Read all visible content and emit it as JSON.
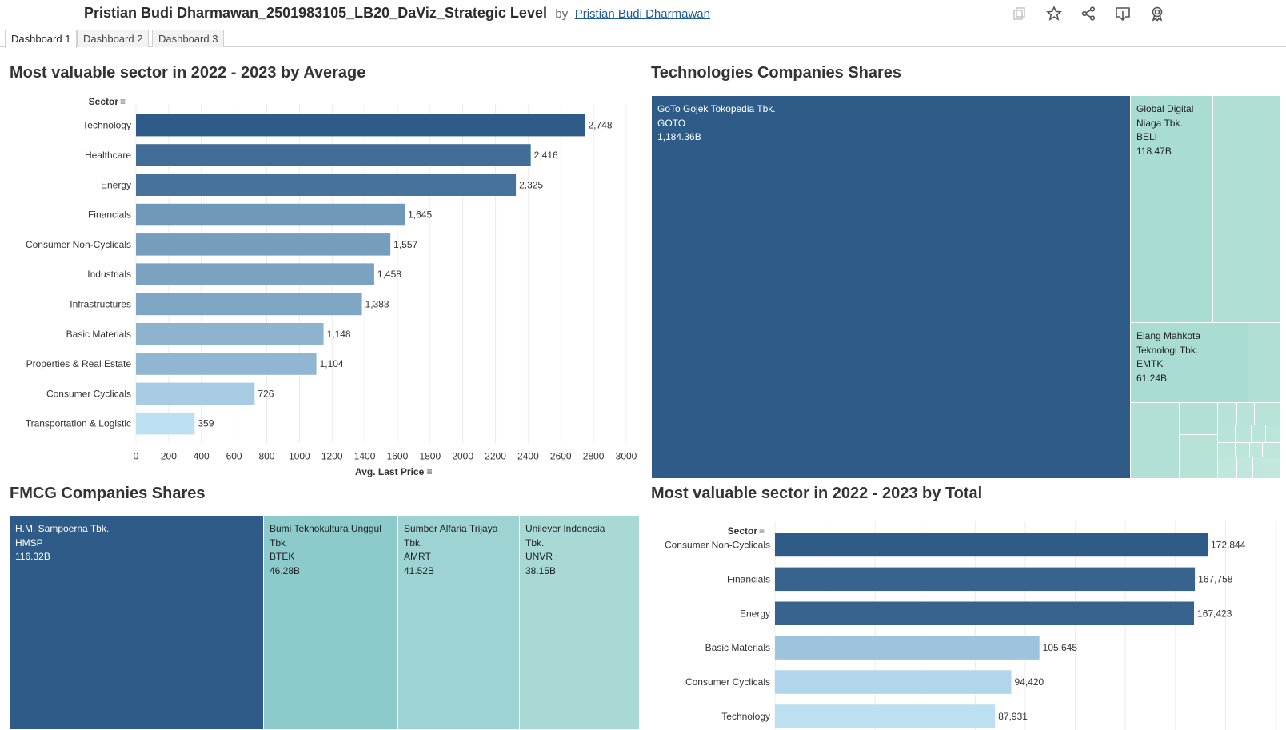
{
  "header": {
    "title": "Pristian Budi Dharmawan_2501983105_LB20_DaViz_Strategic Level",
    "by": "by",
    "author": "Pristian Budi Dharmawan",
    "icons": [
      "copy-icon",
      "star-icon",
      "share-icon",
      "download-icon",
      "badge-icon"
    ]
  },
  "tabs": [
    {
      "label": "Dashboard 1",
      "active": true
    },
    {
      "label": "Dashboard 2",
      "active": false
    },
    {
      "label": "Dashboard 3",
      "active": false
    }
  ],
  "avg_panel": {
    "title": "Most valuable sector in 2022 - 2023 by Average",
    "sort_label": "Sector",
    "x_title": "Avg. Last Price"
  },
  "tech_panel": {
    "title": "Technologies Companies Shares"
  },
  "fmcg_panel": {
    "title": "FMCG Companies Shares"
  },
  "total_panel": {
    "title": "Most valuable sector in 2022 - 2023 by Total",
    "sort_label": "Sector"
  },
  "colors": {
    "dark_blue": "#2e5b87",
    "mid_blue": "#5886b5",
    "light_blue": "#8fbde0",
    "lightest_blue": "#bcdff2",
    "teal_1": "#8dcacc",
    "teal_2": "#9dd3d2",
    "teal_3": "#a8d9d5",
    "mint": "#a9dcd3",
    "mint_light": "#b8e3d8"
  },
  "chart_data": [
    {
      "type": "bar",
      "orientation": "horizontal",
      "title": "Most valuable sector in 2022 - 2023 by Average",
      "ylabel": "Sector",
      "xlabel": "Avg. Last Price",
      "categories": [
        "Technology",
        "Healthcare",
        "Energy",
        "Financials",
        "Consumer Non-Cyclicals",
        "Industrials",
        "Infrastructures",
        "Basic Materials",
        "Properties & Real Estate",
        "Consumer Cyclicals",
        "Transportation & Logistic"
      ],
      "values": [
        2748,
        2416,
        2325,
        1645,
        1557,
        1458,
        1383,
        1148,
        1104,
        726,
        359
      ],
      "value_labels": [
        "2,748",
        "2,416",
        "2,325",
        "1,645",
        "1,557",
        "1,458",
        "1,383",
        "1,148",
        "1,104",
        "726",
        "359"
      ],
      "xlim": [
        0,
        3000
      ],
      "xticks": [
        "0",
        "200",
        "400",
        "600",
        "800",
        "1000",
        "1200",
        "1400",
        "1600",
        "1800",
        "2000",
        "2200",
        "2400",
        "2600",
        "2800",
        "3000"
      ],
      "grid": true,
      "color_scale": "sequential blue by value"
    },
    {
      "type": "treemap",
      "title": "Technologies Companies Shares",
      "items": [
        {
          "name": "GoTo Gojek Tokopedia Tbk.",
          "ticker": "GOTO",
          "value_label": "1,184.36B"
        },
        {
          "name": "Global Digital Niaga Tbk.",
          "ticker": "BELI",
          "value_label": "118.47B"
        },
        {
          "name": "Elang Mahkota Teknologi Tbk.",
          "ticker": "EMTK",
          "value_label": "61.24B"
        }
      ]
    },
    {
      "type": "treemap",
      "title": "FMCG Companies Shares",
      "items": [
        {
          "name": "H.M. Sampoerna Tbk.",
          "ticker": "HMSP",
          "value_label": "116.32B"
        },
        {
          "name": "Bumi Teknokultura Unggul Tbk",
          "ticker": "BTEK",
          "value_label": "46.28B"
        },
        {
          "name": "Sumber Alfaria Trijaya Tbk.",
          "ticker": "AMRT",
          "value_label": "41.52B"
        },
        {
          "name": "Unilever Indonesia Tbk.",
          "ticker": "UNVR",
          "value_label": "38.15B"
        }
      ]
    },
    {
      "type": "bar",
      "orientation": "horizontal",
      "title": "Most valuable sector in 2022 - 2023 by Total",
      "ylabel": "Sector",
      "categories": [
        "Consumer Non-Cyclicals",
        "Financials",
        "Energy",
        "Basic Materials",
        "Consumer Cyclicals",
        "Technology"
      ],
      "values": [
        172844,
        167758,
        167423,
        105645,
        94420,
        87931
      ],
      "value_labels": [
        "172,844",
        "167,758",
        "167,423",
        "105,645",
        "94,420",
        "87,931"
      ],
      "grid": true,
      "color_scale": "sequential blue by value"
    }
  ]
}
